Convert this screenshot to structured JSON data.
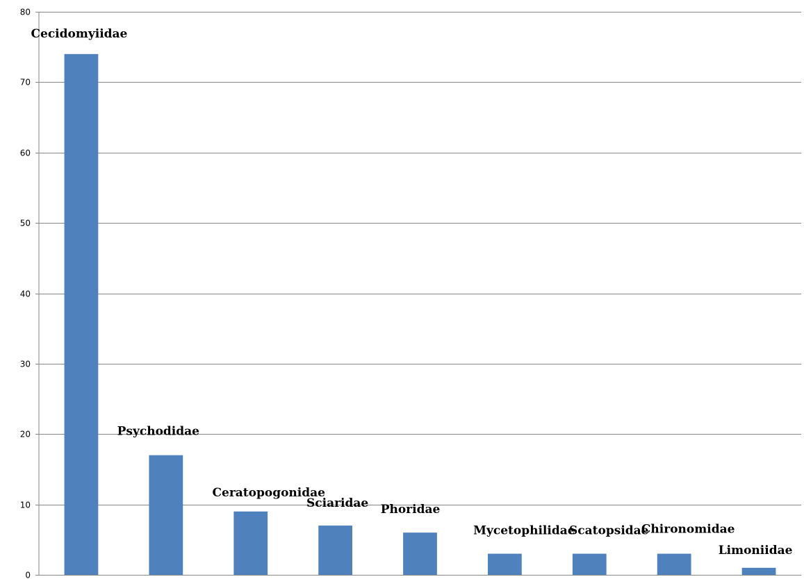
{
  "chart_data": {
    "type": "bar",
    "title": "",
    "xlabel": "",
    "ylabel": "",
    "categories": [
      "Cecidomyiidae",
      "Psychodidae",
      "Ceratopogonidae",
      "Sciaridae",
      "Phoridae",
      "Mycetophilidae",
      "Scatopsidae",
      "Chironomidae",
      "Limoniidae"
    ],
    "values": [
      74,
      17,
      9,
      7,
      6,
      3,
      3,
      3,
      1
    ],
    "ylim": [
      0,
      80
    ],
    "yticks": [
      "0",
      "10",
      "20",
      "30",
      "40",
      "50",
      "60",
      "70",
      "80"
    ],
    "grid": true,
    "legend": "none",
    "bar_color": "#4F81BD",
    "grid_color": "#868686"
  }
}
